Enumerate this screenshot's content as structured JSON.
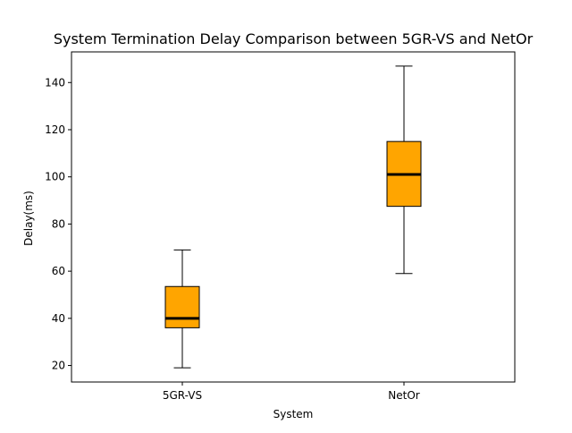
{
  "chart_data": {
    "type": "boxplot",
    "title": "System Termination Delay Comparison between 5GR-VS and NetOr",
    "xlabel": "System",
    "ylabel": "Delay(ms)",
    "categories": [
      "5GR-VS",
      "NetOr"
    ],
    "boxes": [
      {
        "category": "5GR-VS",
        "whisker_low": 19,
        "q1": 36,
        "median": 40,
        "q3": 53.5,
        "whisker_high": 69
      },
      {
        "category": "NetOr",
        "whisker_low": 59,
        "q1": 87.5,
        "median": 101,
        "q3": 115,
        "whisker_high": 147
      }
    ],
    "ylim": [
      13,
      153
    ],
    "yticks": [
      20,
      40,
      60,
      80,
      100,
      120,
      140
    ],
    "box_color": "#ffa500",
    "median_color": "#000000",
    "grid": false,
    "legend": "none"
  }
}
